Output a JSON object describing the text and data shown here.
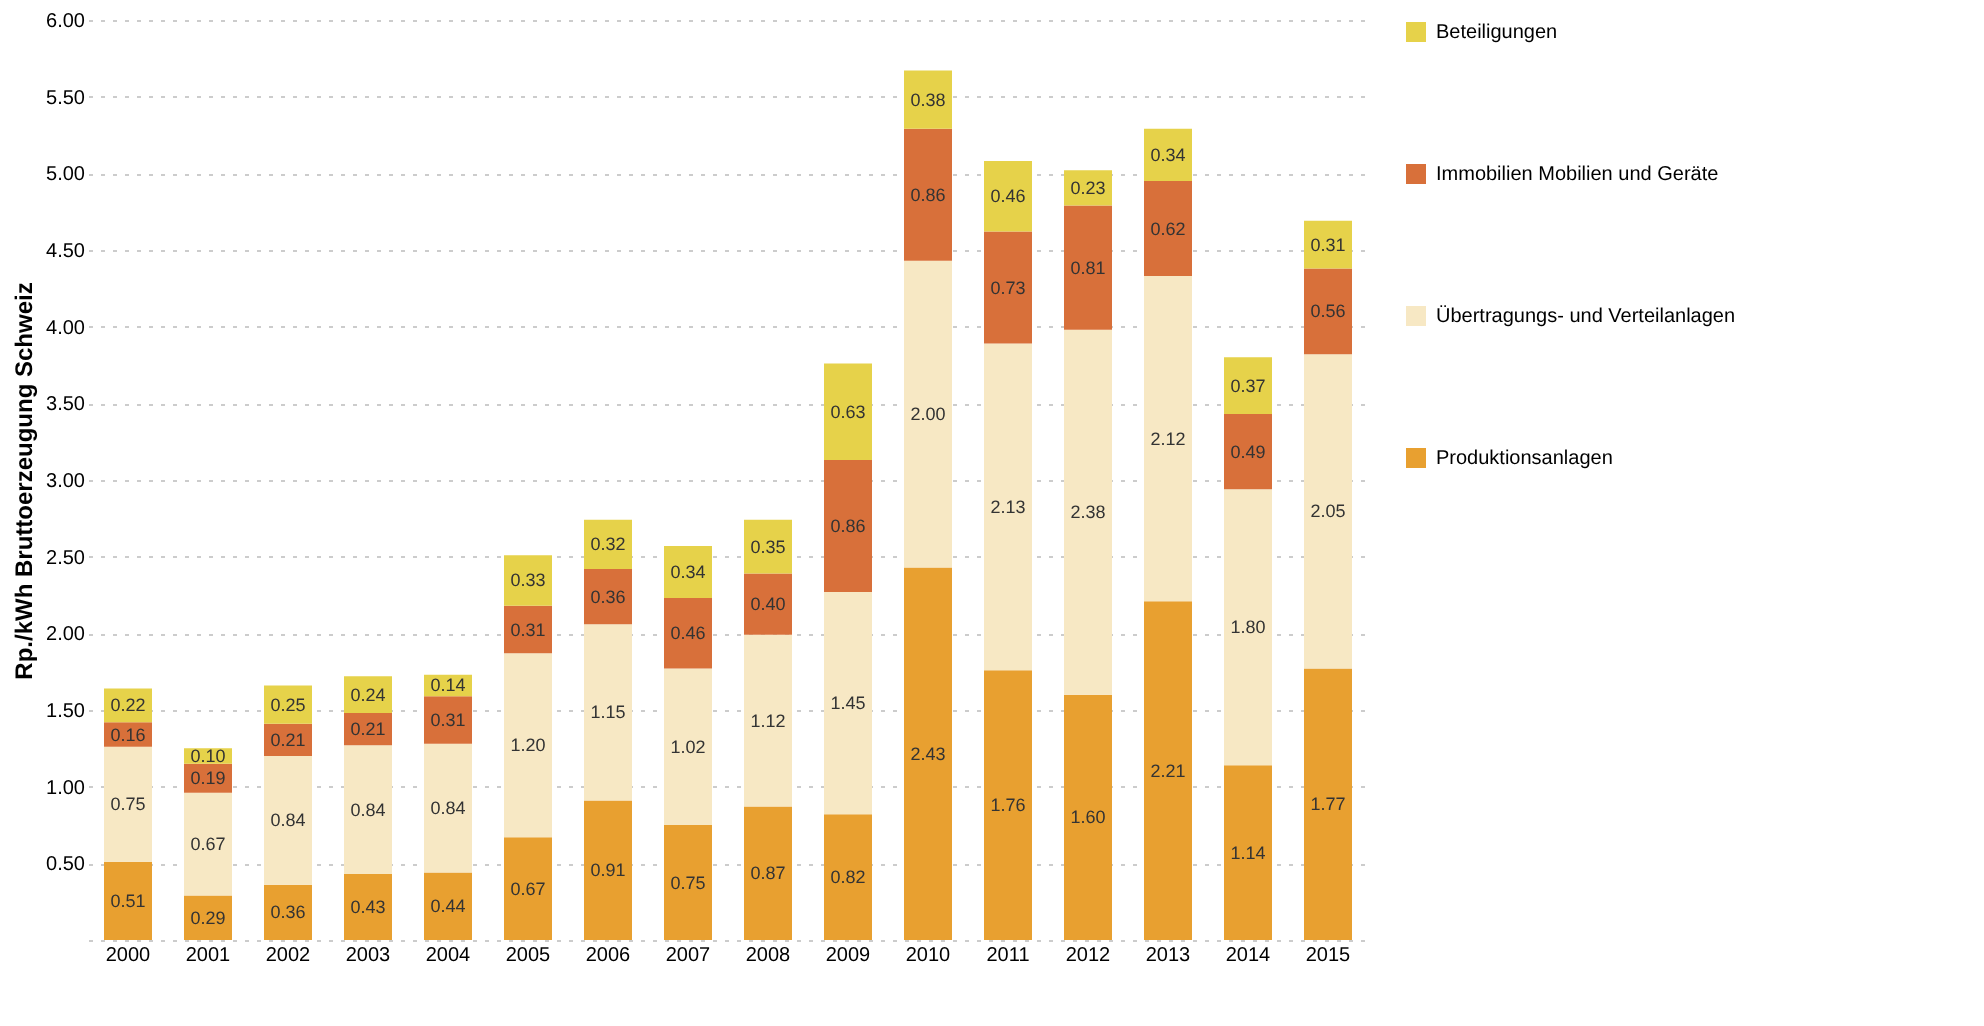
{
  "chart_data": {
    "type": "bar",
    "stacked": true,
    "ylabel": "Rp./kWh Bruttoerzeugung Schweiz",
    "categories": [
      "2000",
      "2001",
      "2002",
      "2003",
      "2004",
      "2005",
      "2006",
      "2007",
      "2008",
      "2009",
      "2010",
      "2011",
      "2012",
      "2013",
      "2014",
      "2015"
    ],
    "series": [
      {
        "name": "Produktionsanlagen",
        "color": "#e8a030",
        "values": [
          0.51,
          0.29,
          0.36,
          0.43,
          0.44,
          0.67,
          0.91,
          0.75,
          0.87,
          0.82,
          2.43,
          1.76,
          1.6,
          2.21,
          1.14,
          1.77
        ],
        "value_labels": [
          "0.51",
          "0.29",
          "0.36",
          "0.43",
          "0.44",
          "0.67",
          "0.91",
          "0.75",
          "0.87",
          "0.82",
          "2.43",
          "1.76",
          "1.60",
          "2.21",
          "1.14",
          "1.77"
        ]
      },
      {
        "name": "Übertragungs- und Verteilanlagen",
        "color": "#f7e8c4",
        "values": [
          0.75,
          0.67,
          0.84,
          0.84,
          0.84,
          1.2,
          1.15,
          1.02,
          1.12,
          1.45,
          2.0,
          2.13,
          2.38,
          2.12,
          1.8,
          2.05
        ],
        "value_labels": [
          "0.75",
          "0.67",
          "0.84",
          "0.84",
          "0.84",
          "1.20",
          "1.15",
          "1.02",
          "1.12",
          "1.45",
          "2.00",
          "2.13",
          "2.38",
          "2.12",
          "1.80",
          "2.05"
        ]
      },
      {
        "name": "Immobilien Mobilien und Geräte",
        "color": "#d8703a",
        "values": [
          0.16,
          0.19,
          0.21,
          0.21,
          0.31,
          0.31,
          0.36,
          0.46,
          0.4,
          0.86,
          0.86,
          0.73,
          0.81,
          0.62,
          0.49,
          0.56
        ],
        "value_labels": [
          "0.16",
          "0.19",
          "0.21",
          "0.21",
          "0.31",
          "0.31",
          "0.36",
          "0.46",
          "0.40",
          "0.86",
          "0.86",
          "0.73",
          "0.81",
          "0.62",
          "0.49",
          "0.56"
        ]
      },
      {
        "name": "Beteiligungen",
        "color": "#e6d24a",
        "values": [
          0.22,
          0.1,
          0.25,
          0.24,
          0.14,
          0.33,
          0.32,
          0.34,
          0.35,
          0.63,
          0.38,
          0.46,
          0.23,
          0.34,
          0.37,
          0.31
        ],
        "value_labels": [
          "0.22",
          "0.10",
          "0.25",
          "0.24",
          "0.14",
          "0.33",
          "0.32",
          "0.34",
          "0.35",
          "0.63",
          "0.38",
          "0.46",
          "0.23",
          "0.34",
          "0.37",
          "0.31"
        ]
      }
    ],
    "ylim": [
      0,
      6
    ],
    "yticks": [
      {
        "value": 0,
        "label": null
      },
      {
        "value": 0.5,
        "label": "0.50"
      },
      {
        "value": 1,
        "label": "1.00"
      },
      {
        "value": 1.5,
        "label": "1.50"
      },
      {
        "value": 2,
        "label": "2.00"
      },
      {
        "value": 2.5,
        "label": "2.50"
      },
      {
        "value": 3,
        "label": "3.00"
      },
      {
        "value": 3.5,
        "label": "3.50"
      },
      {
        "value": 4,
        "label": "4.00"
      },
      {
        "value": 4.5,
        "label": "4.50"
      },
      {
        "value": 5,
        "label": "5.00"
      },
      {
        "value": 5.5,
        "label": "5.50"
      },
      {
        "value": 6,
        "label": "6.00"
      }
    ],
    "grid": "y",
    "legend": "right"
  }
}
